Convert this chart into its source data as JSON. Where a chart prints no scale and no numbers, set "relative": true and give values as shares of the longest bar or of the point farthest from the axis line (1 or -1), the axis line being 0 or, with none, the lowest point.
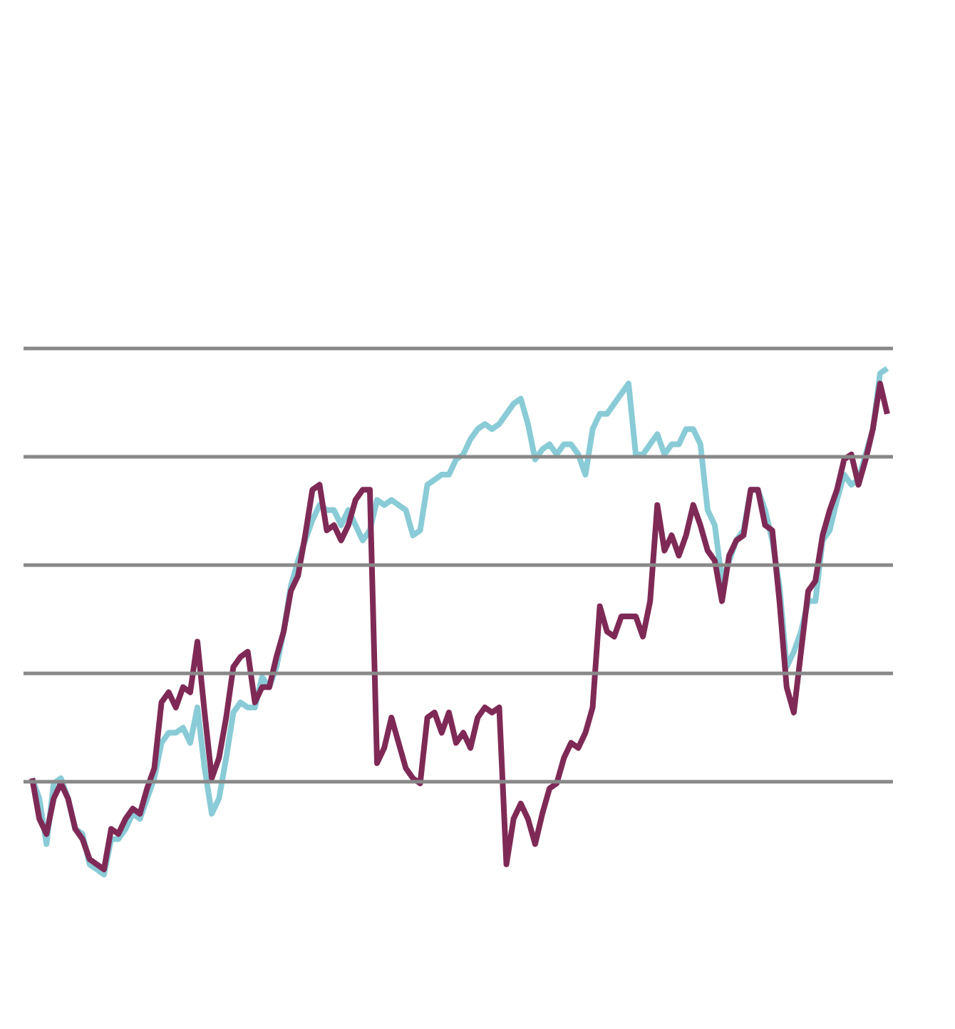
{
  "chart_data": {
    "type": "line",
    "relative": true,
    "grid": "y",
    "line_style": "solid",
    "categories": [
      null,
      null,
      null,
      null,
      null,
      null,
      null,
      null,
      null,
      null,
      null,
      null,
      null,
      null,
      null,
      null,
      null,
      null,
      null,
      null,
      null,
      null,
      null,
      null,
      null,
      null,
      null,
      null,
      null,
      null,
      null,
      null,
      null,
      null,
      null,
      null,
      null,
      null,
      null,
      null,
      null,
      null,
      null,
      null,
      null,
      null,
      null,
      null,
      null,
      null,
      null,
      null,
      null,
      null,
      null,
      null,
      null,
      null,
      null,
      null,
      null,
      null,
      null,
      null,
      null,
      null,
      null,
      null,
      null,
      null,
      null,
      null,
      null,
      null,
      null,
      null,
      null,
      null,
      null,
      null,
      null,
      null,
      null,
      null,
      null,
      null,
      null,
      null,
      null,
      null,
      null,
      null,
      null,
      null,
      null,
      null,
      null,
      null,
      null,
      null,
      null,
      null,
      null,
      null,
      null,
      null,
      null,
      null,
      null,
      null,
      null,
      null,
      null,
      null,
      null,
      null,
      null,
      null,
      null,
      null
    ],
    "series": [
      {
        "color": "#89cbd6",
        "values": [
          0.19,
          0.15,
          0.06,
          0.18,
          0.19,
          0.15,
          0.09,
          0.08,
          0.02,
          0.01,
          0.0,
          0.07,
          0.07,
          0.09,
          0.12,
          0.11,
          0.15,
          0.19,
          0.26,
          0.28,
          0.28,
          0.29,
          0.26,
          0.33,
          0.21,
          0.12,
          0.15,
          0.23,
          0.32,
          0.34,
          0.33,
          0.33,
          0.39,
          0.37,
          0.41,
          0.48,
          0.57,
          0.62,
          0.66,
          0.7,
          0.73,
          0.72,
          0.72,
          0.69,
          0.72,
          0.69,
          0.66,
          0.68,
          0.74,
          0.73,
          0.74,
          0.73,
          0.72,
          0.67,
          0.68,
          0.77,
          0.78,
          0.79,
          0.79,
          0.82,
          0.83,
          0.86,
          0.88,
          0.89,
          0.88,
          0.89,
          0.91,
          0.93,
          0.94,
          0.89,
          0.82,
          0.84,
          0.85,
          0.83,
          0.85,
          0.85,
          0.83,
          0.79,
          0.88,
          0.91,
          0.91,
          0.93,
          0.95,
          0.97,
          0.83,
          0.83,
          0.85,
          0.87,
          0.83,
          0.85,
          0.85,
          0.88,
          0.88,
          0.85,
          0.72,
          0.69,
          0.58,
          0.62,
          0.66,
          0.68,
          0.76,
          0.76,
          0.72,
          0.66,
          0.57,
          0.41,
          0.44,
          0.48,
          0.54,
          0.54,
          0.66,
          0.68,
          0.74,
          0.79,
          0.77,
          0.78,
          0.83,
          0.88,
          0.99,
          1.0
        ]
      },
      {
        "color": "#7f2a56",
        "values": [
          0.19,
          0.11,
          0.08,
          0.15,
          0.18,
          0.15,
          0.09,
          0.07,
          0.03,
          0.02,
          0.01,
          0.09,
          0.08,
          0.11,
          0.13,
          0.12,
          0.17,
          0.21,
          0.34,
          0.36,
          0.33,
          0.37,
          0.36,
          0.46,
          0.32,
          0.19,
          0.23,
          0.31,
          0.41,
          0.43,
          0.44,
          0.34,
          0.37,
          0.37,
          0.43,
          0.48,
          0.56,
          0.59,
          0.67,
          0.76,
          0.77,
          0.68,
          0.69,
          0.66,
          0.69,
          0.74,
          0.76,
          0.76,
          0.22,
          0.25,
          0.31,
          0.26,
          0.21,
          0.19,
          0.18,
          0.31,
          0.32,
          0.28,
          0.32,
          0.26,
          0.28,
          0.25,
          0.31,
          0.33,
          0.32,
          0.33,
          0.02,
          0.11,
          0.14,
          0.11,
          0.06,
          0.12,
          0.17,
          0.18,
          0.23,
          0.26,
          0.25,
          0.28,
          0.33,
          0.53,
          0.48,
          0.47,
          0.51,
          0.51,
          0.51,
          0.47,
          0.54,
          0.73,
          0.64,
          0.67,
          0.63,
          0.67,
          0.73,
          0.69,
          0.64,
          0.62,
          0.54,
          0.63,
          0.66,
          0.67,
          0.76,
          0.76,
          0.69,
          0.68,
          0.54,
          0.37,
          0.32,
          0.44,
          0.56,
          0.58,
          0.67,
          0.72,
          0.76,
          0.82,
          0.83,
          0.77,
          0.82,
          0.88,
          0.97,
          0.91
        ]
      }
    ]
  }
}
